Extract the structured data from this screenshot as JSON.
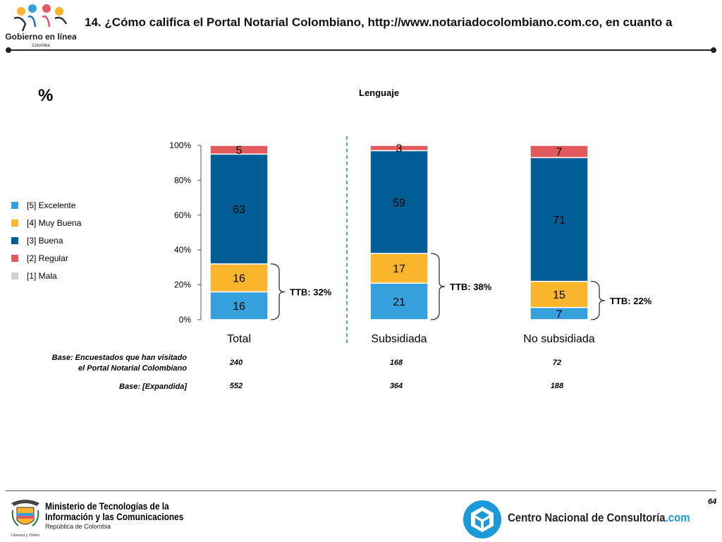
{
  "header": {
    "logo_text": "Gobierno en línea",
    "logo_subtext": "Colombia",
    "title": "14. ¿Cómo califica el Portal Notarial Colombiano, http://www.notariadocolombiano.com.co, en cuanto a"
  },
  "percent_symbol": "%",
  "chart_data": {
    "type": "bar",
    "stacked": true,
    "title": "Lenguaje",
    "categories": [
      "Total",
      "Subsidiada",
      "No subsidiada"
    ],
    "ylim": [
      0,
      100
    ],
    "yticks": [
      "0%",
      "20%",
      "40%",
      "60%",
      "80%",
      "100%"
    ],
    "series": [
      {
        "name": "[1] Mala",
        "color": "#d0d0d0",
        "values": [
          0,
          0,
          0
        ]
      },
      {
        "name": "[2] Regular",
        "color": "#e05a5e",
        "values": [
          5,
          3,
          7
        ]
      },
      {
        "name": "[3] Buena",
        "color": "#005d95",
        "values": [
          63,
          59,
          71
        ]
      },
      {
        "name": "[4] Muy Buena",
        "color": "#fbb52c",
        "values": [
          16,
          17,
          15
        ]
      },
      {
        "name": "[5] Excelente",
        "color": "#35a1dc",
        "values": [
          16,
          21,
          7
        ]
      }
    ],
    "stack_order_bottom_up": [
      "[5] Excelente",
      "[4] Muy Buena",
      "[3] Buena",
      "[2] Regular",
      "[1] Mala"
    ],
    "legend_order": [
      "[5] Excelente",
      "[4] Muy Buena",
      "[3] Buena",
      "[2] Regular",
      "[1] Mala"
    ],
    "legend_position": "left",
    "ttb_labels": [
      "TTB: 32%",
      "TTB: 38%",
      "TTB: 22%"
    ],
    "grid": false
  },
  "bases": {
    "row1_label_line1": "Base: Encuestados que han visitado",
    "row1_label_line2": "el Portal Notarial Colombiano",
    "row1_values": [
      "240",
      "168",
      "72"
    ],
    "row2_label": "Base: [Expandida]",
    "row2_values": [
      "552",
      "364",
      "188"
    ]
  },
  "footer": {
    "page_number": "64",
    "ministry_line1": "Ministerio de Tecnologías de la",
    "ministry_line2": "Información y las Comunicaciones",
    "ministry_line3": "República de Colombia",
    "ministry_motto": "Libertad y Orden",
    "cnc_name": "Centro Nacional de Consultoría",
    "cnc_suffix": ".com"
  }
}
